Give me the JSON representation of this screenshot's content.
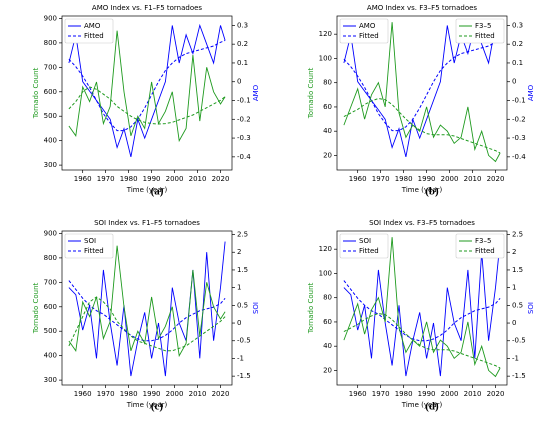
{
  "chart_data": [
    {
      "type": "line",
      "title": "AMO Index vs. F1–F5 tornadoes",
      "xlabel": "Time (year)",
      "ylabel": "Tornado Count",
      "y2label": "AMO",
      "panel_label": "(a)",
      "x": [
        1954,
        1957,
        1960,
        1963,
        1966,
        1969,
        1972,
        1975,
        1978,
        1981,
        1984,
        1987,
        1990,
        1993,
        1996,
        1999,
        2002,
        2005,
        2008,
        2011,
        2014,
        2017,
        2020,
        2022
      ],
      "xlim": [
        1951,
        2025
      ],
      "xticks": [
        1960,
        1970,
        1980,
        1990,
        2000,
        2010,
        2020
      ],
      "ylim": [
        280,
        910
      ],
      "yticks": [
        300,
        400,
        500,
        600,
        700,
        800,
        900
      ],
      "y2lim": [
        -0.47,
        0.35
      ],
      "y2ticks": [
        -0.4,
        -0.3,
        -0.2,
        -0.1,
        0.0,
        0.1,
        0.2,
        0.3
      ],
      "series": [
        {
          "name": "AMO",
          "color": "#0000ff",
          "axis": "y2",
          "style": "solid",
          "legend": "upper left",
          "values": [
            0.1,
            0.25,
            0.0,
            -0.05,
            -0.1,
            -0.15,
            -0.2,
            -0.35,
            -0.25,
            -0.4,
            -0.2,
            -0.3,
            -0.2,
            -0.1,
            0.0,
            0.3,
            0.1,
            0.25,
            0.15,
            0.3,
            0.2,
            0.1,
            0.3,
            0.22
          ]
        },
        {
          "name": "Fitted",
          "color": "#0000ff",
          "axis": "y2",
          "style": "dashed",
          "legend": "upper left",
          "values": [
            0.12,
            0.08,
            0.03,
            -0.03,
            -0.1,
            -0.17,
            -0.22,
            -0.26,
            -0.26,
            -0.24,
            -0.2,
            -0.14,
            -0.07,
            0.0,
            0.06,
            0.1,
            0.13,
            0.15,
            0.16,
            0.17,
            0.18,
            0.19,
            0.21,
            0.22
          ]
        },
        {
          "color": "#1f9a1f",
          "style": "solid",
          "values": [
            460,
            420,
            620,
            560,
            640,
            470,
            540,
            850,
            600,
            420,
            500,
            450,
            640,
            470,
            520,
            600,
            400,
            450,
            750,
            480,
            700,
            600,
            550,
            580
          ]
        },
        {
          "color": "#1f9a1f",
          "style": "dashed",
          "values": [
            530,
            560,
            600,
            620,
            610,
            590,
            570,
            540,
            520,
            500,
            485,
            475,
            470,
            468,
            470,
            475,
            485,
            495,
            505,
            520,
            535,
            550,
            565,
            580
          ]
        }
      ]
    },
    {
      "type": "line",
      "title": "AMO Index vs. F3–F5 tornadoes",
      "xlabel": "Time (year)",
      "ylabel": "Tornado Count",
      "y2label": "AMO",
      "panel_label": "(b)",
      "x": [
        1954,
        1957,
        1960,
        1963,
        1966,
        1969,
        1972,
        1975,
        1978,
        1981,
        1984,
        1987,
        1990,
        1993,
        1996,
        1999,
        2002,
        2005,
        2008,
        2011,
        2014,
        2017,
        2020,
        2022
      ],
      "xlim": [
        1951,
        2025
      ],
      "xticks": [
        1960,
        1970,
        1980,
        1990,
        2000,
        2010,
        2020
      ],
      "ylim": [
        8,
        135
      ],
      "yticks": [
        20,
        40,
        60,
        80,
        100,
        120
      ],
      "y2lim": [
        -0.47,
        0.35
      ],
      "y2ticks": [
        -0.4,
        -0.3,
        -0.2,
        -0.1,
        0.0,
        0.1,
        0.2,
        0.3
      ],
      "series": [
        {
          "name": "AMO",
          "color": "#0000ff",
          "axis": "y2",
          "style": "solid",
          "legend": "upper left",
          "values": [
            0.1,
            0.25,
            0.0,
            -0.05,
            -0.1,
            -0.15,
            -0.2,
            -0.35,
            -0.25,
            -0.4,
            -0.2,
            -0.3,
            -0.2,
            -0.1,
            0.0,
            0.3,
            0.1,
            0.25,
            0.15,
            0.3,
            0.2,
            0.1,
            0.3,
            0.22
          ]
        },
        {
          "name": "Fitted",
          "color": "#0000ff",
          "axis": "y2",
          "style": "dashed",
          "legend": "upper left",
          "values": [
            0.12,
            0.08,
            0.03,
            -0.03,
            -0.1,
            -0.17,
            -0.22,
            -0.26,
            -0.26,
            -0.24,
            -0.2,
            -0.14,
            -0.07,
            0.0,
            0.06,
            0.1,
            0.13,
            0.15,
            0.16,
            0.17,
            0.18,
            0.19,
            0.21,
            0.22
          ]
        },
        {
          "name": "F3–5",
          "color": "#1f9a1f",
          "style": "solid",
          "legend": "upper right",
          "values": [
            45,
            60,
            75,
            50,
            70,
            80,
            60,
            130,
            55,
            35,
            45,
            40,
            60,
            35,
            45,
            40,
            30,
            35,
            60,
            25,
            40,
            20,
            15,
            22
          ]
        },
        {
          "name": "Fitted",
          "color": "#1f9a1f",
          "style": "dashed",
          "legend": "upper right",
          "values": [
            52,
            55,
            58,
            62,
            65,
            67,
            66,
            62,
            56,
            50,
            45,
            41,
            38,
            37,
            37,
            37,
            36,
            34,
            32,
            30,
            28,
            26,
            24,
            22
          ]
        }
      ]
    },
    {
      "type": "line",
      "title": "SOI Index vs. F1–F5 tornadoes",
      "xlabel": "Time (year)",
      "ylabel": "Tornado Count",
      "y2label": "SOI",
      "panel_label": "(c)",
      "x": [
        1954,
        1957,
        1960,
        1963,
        1966,
        1969,
        1972,
        1975,
        1978,
        1981,
        1984,
        1987,
        1990,
        1993,
        1996,
        1999,
        2002,
        2005,
        2008,
        2011,
        2014,
        2017,
        2020,
        2022
      ],
      "xlim": [
        1951,
        2025
      ],
      "xticks": [
        1960,
        1970,
        1980,
        1990,
        2000,
        2010,
        2020
      ],
      "ylim": [
        280,
        910
      ],
      "yticks": [
        300,
        400,
        500,
        600,
        700,
        800,
        900
      ],
      "y2lim": [
        -1.75,
        2.6
      ],
      "y2ticks": [
        -1.5,
        -1.0,
        -0.5,
        0.0,
        0.5,
        1.0,
        1.5,
        2.0,
        2.5
      ],
      "series": [
        {
          "name": "SOI",
          "color": "#0000ff",
          "axis": "y2",
          "style": "solid",
          "legend": "upper left",
          "values": [
            1.0,
            0.8,
            -0.2,
            0.5,
            -1.0,
            1.5,
            0.0,
            -1.2,
            0.5,
            -1.5,
            -0.5,
            0.3,
            -1.0,
            0.0,
            -1.5,
            1.0,
            0.0,
            -0.5,
            1.5,
            -1.0,
            2.0,
            -0.5,
            1.0,
            2.3
          ]
        },
        {
          "name": "Fitted",
          "color": "#0000ff",
          "axis": "y2",
          "style": "dashed",
          "legend": "upper left",
          "values": [
            1.2,
            0.95,
            0.7,
            0.5,
            0.35,
            0.25,
            0.1,
            -0.05,
            -0.2,
            -0.35,
            -0.45,
            -0.5,
            -0.5,
            -0.45,
            -0.35,
            -0.2,
            0.0,
            0.15,
            0.25,
            0.35,
            0.4,
            0.45,
            0.55,
            0.7
          ]
        },
        {
          "color": "#1f9a1f",
          "style": "solid",
          "values": [
            460,
            420,
            620,
            560,
            640,
            470,
            540,
            850,
            600,
            420,
            500,
            450,
            640,
            470,
            520,
            600,
            400,
            450,
            750,
            480,
            700,
            600,
            550,
            580
          ]
        },
        {
          "color": "#1f9a1f",
          "style": "dashed",
          "values": [
            440,
            500,
            560,
            620,
            640,
            620,
            590,
            540,
            510,
            480,
            460,
            450,
            440,
            430,
            420,
            420,
            430,
            440,
            460,
            480,
            500,
            520,
            540,
            560
          ]
        }
      ]
    },
    {
      "type": "line",
      "title": "SOI Index vs. F3–F5 tornadoes",
      "xlabel": "Time (year)",
      "ylabel": "Tornado Count",
      "y2label": "SOI",
      "panel_label": "(d)",
      "x": [
        1954,
        1957,
        1960,
        1963,
        1966,
        1969,
        1972,
        1975,
        1978,
        1981,
        1984,
        1987,
        1990,
        1993,
        1996,
        1999,
        2002,
        2005,
        2008,
        2011,
        2014,
        2017,
        2020,
        2022
      ],
      "xlim": [
        1951,
        2025
      ],
      "xticks": [
        1960,
        1970,
        1980,
        1990,
        2000,
        2010,
        2020
      ],
      "ylim": [
        8,
        135
      ],
      "yticks": [
        20,
        40,
        60,
        80,
        100,
        120
      ],
      "y2lim": [
        -1.75,
        2.6
      ],
      "y2ticks": [
        -1.5,
        -1.0,
        -0.5,
        0.0,
        0.5,
        1.0,
        1.5,
        2.0,
        2.5
      ],
      "series": [
        {
          "name": "SOI",
          "color": "#0000ff",
          "axis": "y2",
          "style": "solid",
          "legend": "upper left",
          "values": [
            1.0,
            0.8,
            -0.2,
            0.5,
            -1.0,
            1.5,
            0.0,
            -1.2,
            0.5,
            -1.5,
            -0.5,
            0.3,
            -1.0,
            0.0,
            -1.5,
            1.0,
            0.0,
            -0.5,
            1.5,
            -1.0,
            2.0,
            -0.5,
            1.0,
            2.3
          ]
        },
        {
          "name": "Fitted",
          "color": "#0000ff",
          "axis": "y2",
          "style": "dashed",
          "legend": "upper left",
          "values": [
            1.2,
            0.95,
            0.7,
            0.5,
            0.35,
            0.25,
            0.1,
            -0.05,
            -0.2,
            -0.35,
            -0.45,
            -0.5,
            -0.5,
            -0.45,
            -0.35,
            -0.2,
            0.0,
            0.15,
            0.25,
            0.35,
            0.4,
            0.45,
            0.55,
            0.7
          ]
        },
        {
          "name": "F3–5",
          "color": "#1f9a1f",
          "style": "solid",
          "legend": "upper right",
          "values": [
            45,
            60,
            75,
            50,
            70,
            80,
            60,
            130,
            55,
            35,
            45,
            40,
            60,
            35,
            45,
            40,
            30,
            35,
            60,
            25,
            40,
            20,
            15,
            22
          ]
        },
        {
          "name": "Fitted",
          "color": "#1f9a1f",
          "style": "dashed",
          "legend": "upper right",
          "values": [
            52,
            55,
            58,
            62,
            65,
            67,
            66,
            62,
            56,
            50,
            45,
            41,
            38,
            37,
            37,
            37,
            36,
            34,
            32,
            30,
            28,
            26,
            24,
            22
          ]
        }
      ]
    }
  ]
}
